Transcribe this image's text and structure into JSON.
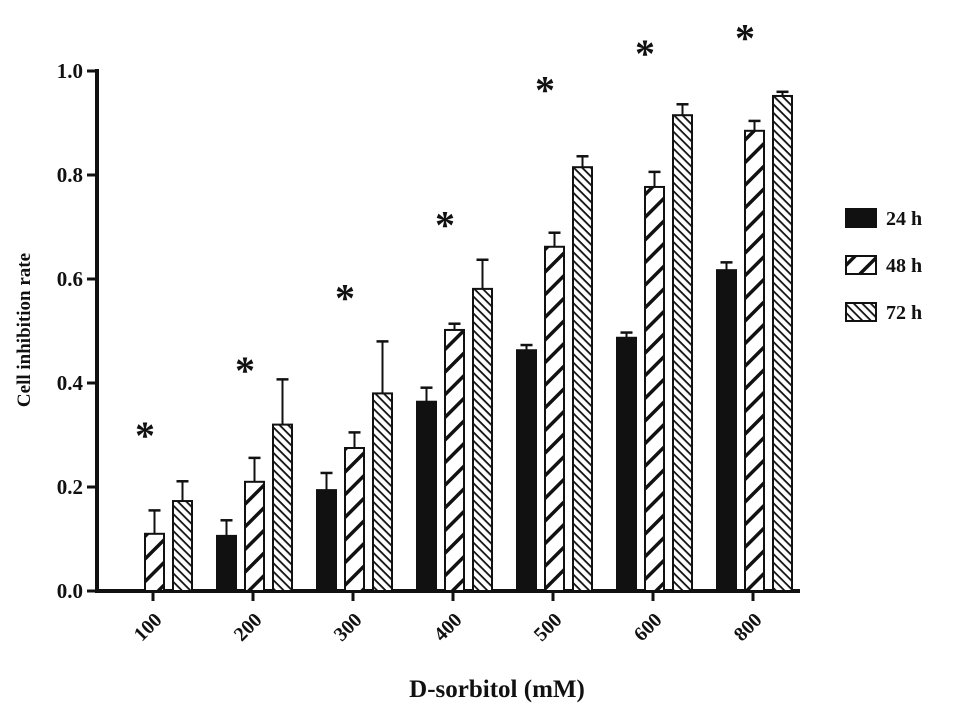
{
  "chart_data": {
    "type": "bar",
    "title": "",
    "xlabel": "D-sorbitol (mM)",
    "ylabel": "Cell inhibition rate",
    "ylim": [
      0,
      1.0
    ],
    "yticks": [
      "0.0",
      "0.2",
      "0.4",
      "0.6",
      "0.8",
      "1.0"
    ],
    "grid": false,
    "legend_position": "right",
    "categories": [
      "100",
      "200",
      "300",
      "400",
      "500",
      "600",
      "800"
    ],
    "series": [
      {
        "name": "24 h",
        "pattern": "solid",
        "values": [
          0,
          0.106,
          0.194,
          0.364,
          0.463,
          0.487,
          0.617
        ],
        "errors": [
          0,
          0.03,
          0.033,
          0.027,
          0.01,
          0.01,
          0.015
        ]
      },
      {
        "name": "48 h",
        "pattern": "wide-back-diagonal",
        "values": [
          0.11,
          0.21,
          0.275,
          0.502,
          0.662,
          0.777,
          0.885
        ],
        "errors": [
          0.045,
          0.046,
          0.03,
          0.012,
          0.027,
          0.029,
          0.019
        ]
      },
      {
        "name": "72 h",
        "pattern": "dense-forward-diagonal",
        "values": [
          0.173,
          0.32,
          0.38,
          0.581,
          0.815,
          0.915,
          0.952
        ],
        "errors": [
          0.038,
          0.087,
          0.1,
          0.056,
          0.021,
          0.021,
          0.008
        ]
      }
    ],
    "annotations": [
      {
        "category": "100",
        "text": "*",
        "y": 0.315
      },
      {
        "category": "200",
        "text": "*",
        "y": 0.44
      },
      {
        "category": "300",
        "text": "*",
        "y": 0.58
      },
      {
        "category": "400",
        "text": "*",
        "y": 0.72
      },
      {
        "category": "500",
        "text": "*",
        "y": 0.98
      },
      {
        "category": "600",
        "text": "*",
        "y": 1.05
      },
      {
        "category": "800",
        "text": "*",
        "y": 1.08
      }
    ],
    "colors": {
      "bar_fill": "#111111",
      "axis": "#111111"
    }
  }
}
